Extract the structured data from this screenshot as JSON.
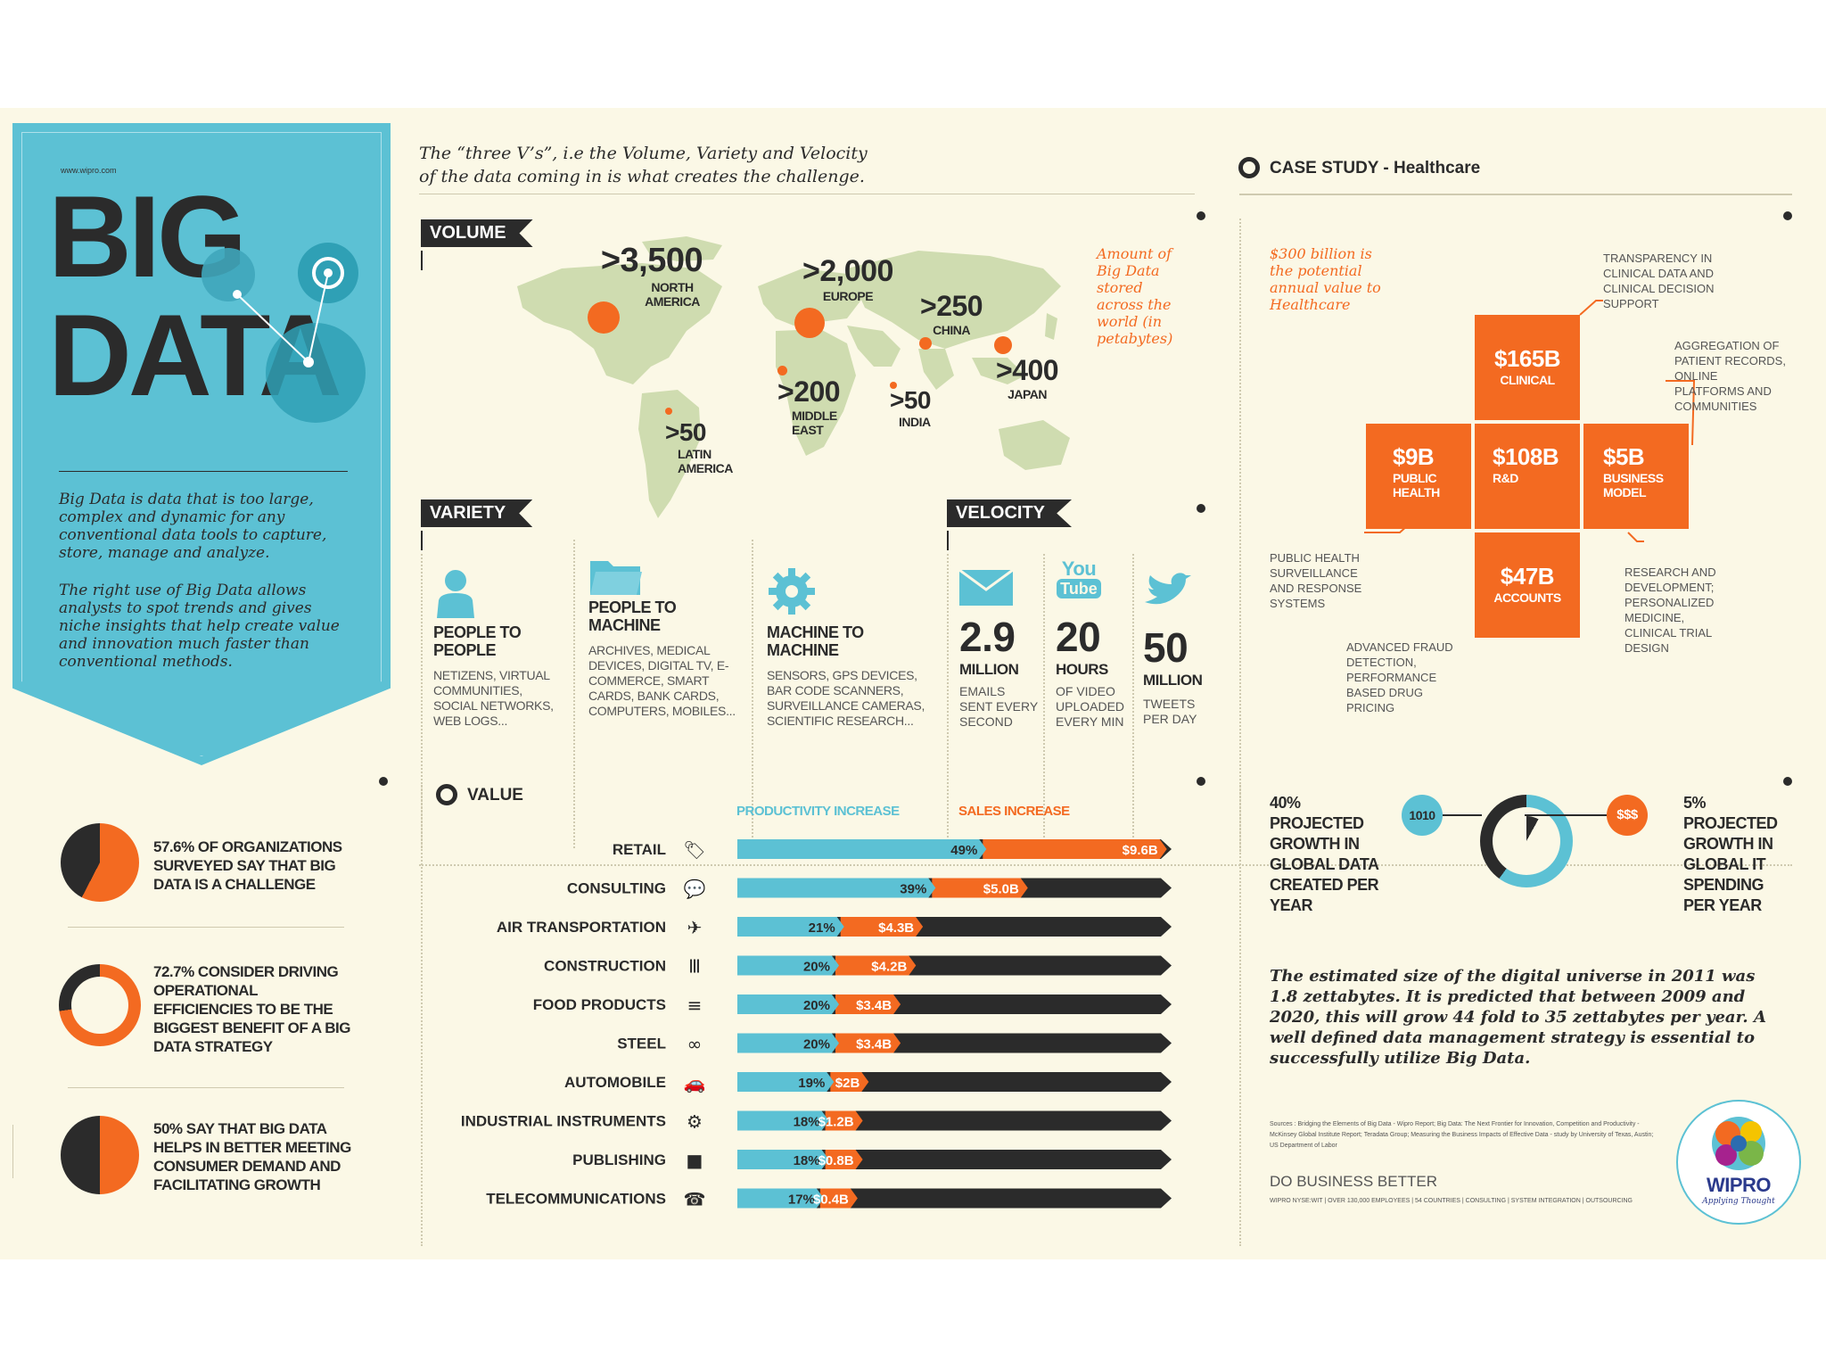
{
  "left_panel": {
    "site": "www.wipro.com",
    "title_line1": "BIG",
    "title_line2": "DATA",
    "intro1": "Big Data is data that is too large, complex and dynamic for any conventional data tools to capture, store, manage and analyze.",
    "intro2": "The right use of Big Data allows analysts to spot trends and gives niche insights that help create value and innovation much faster than conventional methods.",
    "stats": [
      {
        "text": "57.6% OF ORGANIZATIONS SURVEYED SAY THAT BIG DATA IS A CHALLENGE",
        "value": 57.6
      },
      {
        "text": "72.7% CONSIDER DRIVING OPERATIONAL EFFICIENCIES TO BE THE BIGGEST BENEFIT OF A BIG DATA STRATEGY",
        "value": 72.7
      },
      {
        "text": "50% SAY THAT BIG DATA HELPS IN BETTER MEETING CONSUMER DEMAND AND FACILITATING GROWTH",
        "value": 50
      }
    ]
  },
  "header": {
    "subtitle_line1": "The “three V’s”, i.e the Volume, Variety and Velocity",
    "subtitle_line2": "of the data coming in is what creates the challenge.",
    "case_study": "CASE STUDY - Healthcare"
  },
  "volume": {
    "tag": "VOLUME",
    "caption": "Amount of Big Data stored across the world (in petabytes)",
    "regions": [
      {
        "value": ">3,500",
        "name": "NORTH AMERICA"
      },
      {
        "value": ">2,000",
        "name": "EUROPE"
      },
      {
        "value": ">250",
        "name": "CHINA"
      },
      {
        "value": ">400",
        "name": "JAPAN"
      },
      {
        "value": ">200",
        "name": "MIDDLE EAST"
      },
      {
        "value": ">50",
        "name": "INDIA"
      },
      {
        "value": ">50",
        "name": "LATIN AMERICA"
      }
    ]
  },
  "variety": {
    "tag": "VARIETY",
    "items": [
      {
        "title": "PEOPLE TO PEOPLE",
        "desc": "NETIZENS, VIRTUAL COMMUNITIES, SOCIAL NETWORKS, WEB LOGS..."
      },
      {
        "title": "PEOPLE TO MACHINE",
        "desc": "ARCHIVES, MEDICAL DEVICES, DIGITAL TV, E-COMMERCE, SMART CARDS, BANK CARDS, COMPUTERS, MOBILES..."
      },
      {
        "title": "MACHINE TO MACHINE",
        "desc": "SENSORS, GPS DEVICES, BAR CODE SCANNERS, SURVEILLANCE CAMERAS, SCIENTIFIC RESEARCH..."
      }
    ]
  },
  "velocity": {
    "tag": "VELOCITY",
    "youtube_you": "You",
    "youtube_tube": "Tube",
    "items": [
      {
        "num": "2.9",
        "unit": "MILLION",
        "desc": "EMAILS SENT EVERY SECOND"
      },
      {
        "num": "20",
        "unit": "HOURS",
        "desc": "OF VIDEO UPLOADED EVERY MIN"
      },
      {
        "num": "50",
        "unit": "MILLION",
        "desc": "TWEETS PER DAY"
      }
    ]
  },
  "healthcare": {
    "note": "$300 billion is the potential annual value to Healthcare",
    "blocks": [
      {
        "value": "$165B",
        "label": "CLINICAL"
      },
      {
        "value": "$9B",
        "label": "PUBLIC HEALTH"
      },
      {
        "value": "$108B",
        "label": "R&D"
      },
      {
        "value": "$5B",
        "label": "BUSINESS MODEL"
      },
      {
        "value": "$47B",
        "label": "ACCOUNTS"
      }
    ],
    "annotations": {
      "clinical": "TRANSPARENCY IN CLINICAL DATA AND CLINICAL DECISION SUPPORT",
      "business": "AGGREGATION OF PATIENT RECORDS, ONLINE PLATFORMS AND COMMUNITIES",
      "public": "PUBLIC HEALTH SURVEILLANCE AND RESPONSE SYSTEMS",
      "rd": "RESEARCH AND DEVELOPMENT; PERSONALIZED MEDICINE, CLINICAL TRIAL DESIGN",
      "accounts": "ADVANCED FRAUD DETECTION, PERFORMANCE BASED DRUG PRICING"
    }
  },
  "value": {
    "tag": "VALUE",
    "legend_productivity": "PRODUCTIVITY INCREASE",
    "legend_sales": "SALES INCREASE"
  },
  "chart_data": {
    "type": "bar",
    "categories": [
      "RETAIL",
      "CONSULTING",
      "AIR TRANSPORTATION",
      "CONSTRUCTION",
      "FOOD PRODUCTS",
      "STEEL",
      "AUTOMOBILE",
      "INDUSTRIAL INSTRUMENTS",
      "PUBLISHING",
      "TELECOMMUNICATIONS"
    ],
    "series": [
      {
        "name": "PRODUCTIVITY INCREASE",
        "values": [
          49,
          39,
          21,
          20,
          20,
          20,
          19,
          18,
          18,
          17
        ],
        "labels": [
          "49%",
          "39%",
          "21%",
          "20%",
          "20%",
          "20%",
          "19%",
          "18%",
          "18%",
          "17%"
        ]
      },
      {
        "name": "SALES INCREASE",
        "values": [
          9.6,
          5.0,
          4.3,
          4.2,
          3.4,
          3.4,
          2.0,
          1.2,
          0.8,
          0.4
        ],
        "labels": [
          "$9.6B",
          "$5.0B",
          "$4.3B",
          "$4.2B",
          "$3.4B",
          "$3.4B",
          "$2B",
          "$1.2B",
          "$0.8B",
          "$0.4B"
        ]
      }
    ],
    "colors": {
      "productivity": "#5cc1d4",
      "sales": "#f36a21",
      "track": "#2b2b2b"
    }
  },
  "growth": {
    "left": "40% PROJECTED GROWTH IN GLOBAL DATA CREATED PER YEAR",
    "right": "5% PROJECTED GROWTH IN GLOBAL IT SPENDING PER YEAR",
    "bubble_left": "1010",
    "bubble_right": "$$$",
    "left_value": 40,
    "right_value": 5
  },
  "digital_universe": "The estimated size of the digital universe in 2011 was 1.8 zettabytes. It is predicted that between 2009 and 2020, this will grow 44 fold to 35 zettabytes per year. A well defined data management strategy is essential to successfully utilize Big Data.",
  "footer": {
    "sources": "Sources : Bridging the Elements of Big Data - Wipro Report; Big Data: The Next Frontier for Innovation, Competition and Productivity - McKinsey Global Institute Report; Teradata Group; Measuring the Business Impacts of Effective Data - study by University of Texas, Austin; US Department of Labor",
    "tagline": "DO BUSINESS BETTER",
    "footline": "WIPRO NYSE:WIT | OVER 130,000 EMPLOYEES | 54 COUNTRIES | CONSULTING | SYSTEM INTEGRATION | OUTSOURCING",
    "logo_text": "WIPRO",
    "logo_sub": "Applying Thought"
  },
  "colors": {
    "teal": "#5cc1d4",
    "orange": "#f36a21",
    "dark": "#2b2b2b",
    "cream": "#fbf8e6"
  }
}
